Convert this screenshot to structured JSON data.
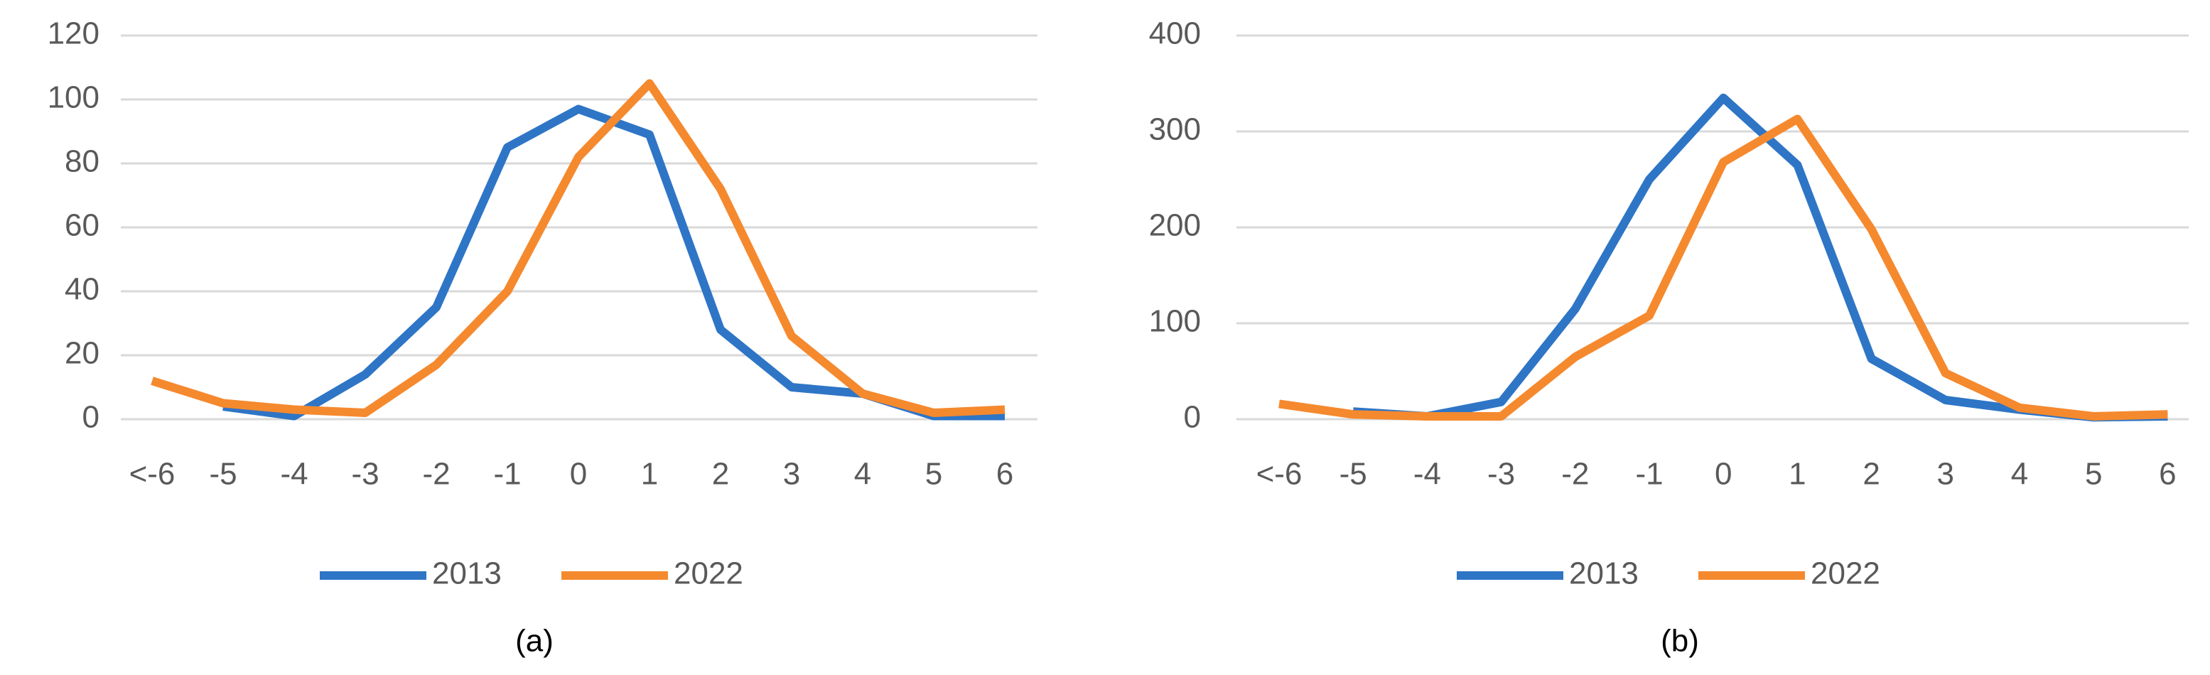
{
  "chart_data": [
    {
      "type": "line",
      "title": "(a)",
      "categories": [
        "<-6",
        "-5",
        "-4",
        "-3",
        "-2",
        "-1",
        "0",
        "1",
        "2",
        "3",
        "4",
        "5",
        "6"
      ],
      "series": [
        {
          "name": "2013",
          "color": "#2e75c6",
          "values": [
            null,
            4,
            1,
            14,
            35,
            85,
            97,
            89,
            28,
            10,
            8,
            1,
            1
          ]
        },
        {
          "name": "2022",
          "color": "#f5892e",
          "values": [
            12,
            5,
            3,
            2,
            17,
            40,
            82,
            105,
            72,
            26,
            8,
            2,
            3
          ]
        }
      ],
      "ylim": [
        0,
        120
      ],
      "yticks": [
        0,
        20,
        40,
        60,
        80,
        100,
        120
      ],
      "grid": true
    },
    {
      "type": "line",
      "title": "(b)",
      "categories": [
        "<-6",
        "-5",
        "-4",
        "-3",
        "-2",
        "-1",
        "0",
        "1",
        "2",
        "3",
        "4",
        "5",
        "6"
      ],
      "series": [
        {
          "name": "2013",
          "color": "#2e75c6",
          "values": [
            null,
            8,
            3,
            18,
            115,
            250,
            335,
            265,
            63,
            20,
            10,
            2,
            3
          ]
        },
        {
          "name": "2022",
          "color": "#f5892e",
          "values": [
            16,
            5,
            3,
            3,
            65,
            108,
            268,
            313,
            198,
            48,
            12,
            3,
            5
          ]
        }
      ],
      "ylim": [
        0,
        400
      ],
      "yticks": [
        0,
        100,
        200,
        300,
        400
      ],
      "grid": true
    }
  ]
}
